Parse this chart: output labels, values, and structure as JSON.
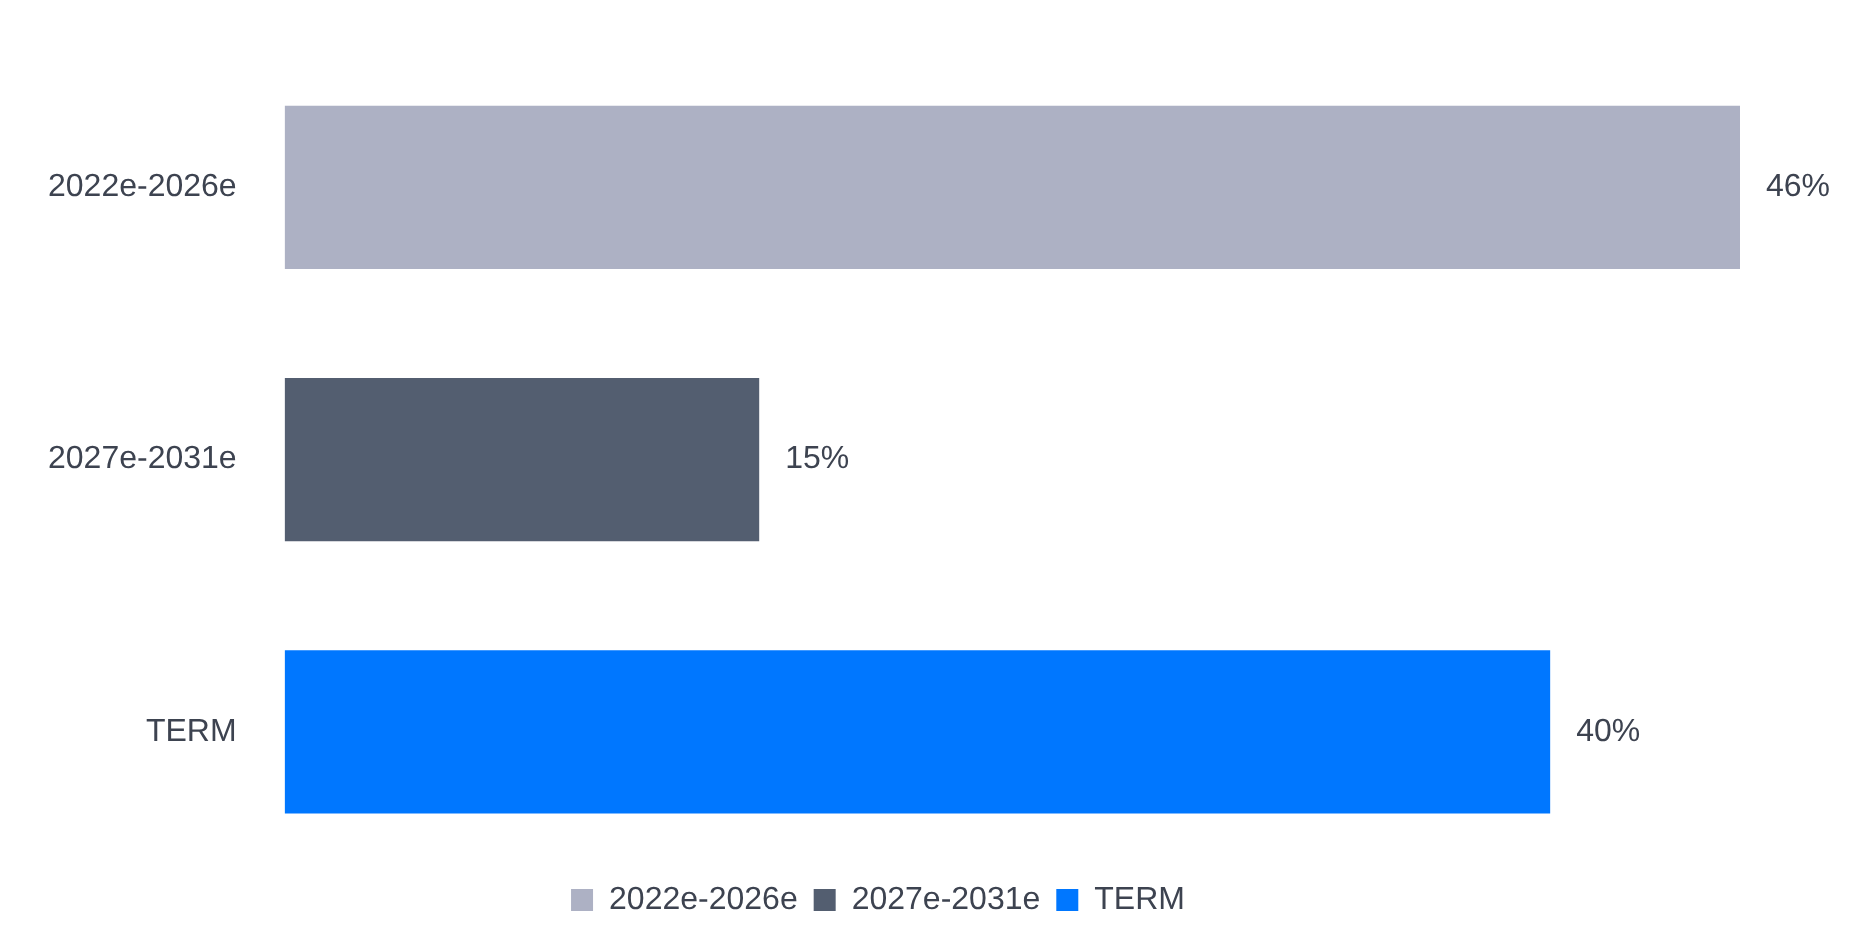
{
  "chart_data": {
    "type": "bar",
    "orientation": "horizontal",
    "categories": [
      "2022e-2026e",
      "2027e-2031e",
      "TERM"
    ],
    "series": [
      {
        "name": "2022e-2026e",
        "color": "#adb1c4",
        "values": [
          46,
          null,
          null
        ],
        "value_labels": [
          "46%",
          null,
          null
        ]
      },
      {
        "name": "2027e-2031e",
        "color": "#535e70",
        "values": [
          null,
          15,
          null
        ],
        "value_labels": [
          null,
          "15%",
          null
        ]
      },
      {
        "name": "TERM",
        "color": "#0077ff",
        "values": [
          null,
          null,
          40
        ],
        "value_labels": [
          null,
          null,
          "40%"
        ]
      }
    ],
    "legend": "bottom"
  }
}
